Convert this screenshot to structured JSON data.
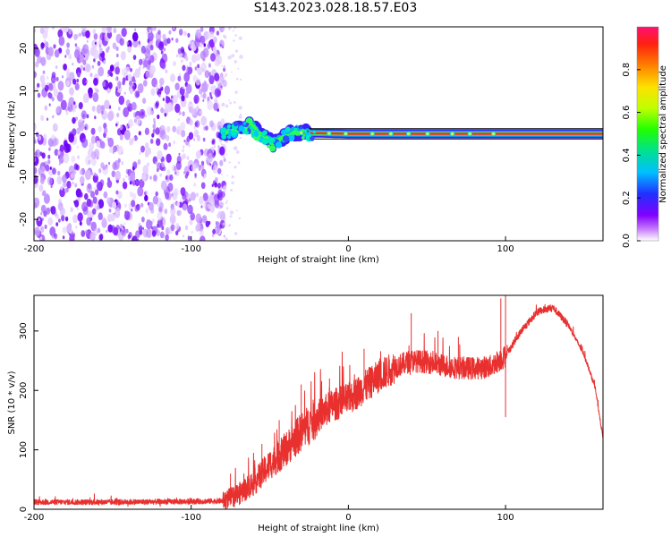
{
  "title": "S143.2023.028.18.57.E03",
  "chart_data": [
    {
      "type": "heatmap",
      "xlabel": "Height of straight line (km)",
      "ylabel": "Frequency (Hz)",
      "xlim": [
        -200,
        162
      ],
      "ylim": [
        -25,
        25
      ],
      "x_ticks": [
        -200,
        -100,
        0,
        100
      ],
      "y_ticks": [
        -20,
        -10,
        0,
        10,
        20
      ],
      "grid": false,
      "description_of_data": "Noise region (x < -80 km) shows scattered low-amplitude purple blobs across all frequencies; from about -80 km onward a narrow signal line near 0 Hz with high normalized amplitude (red core, green/blue halo), wandering near -2 Hz between -75 and -40 km.",
      "signal_line_points": [
        {
          "x": -80,
          "y": 0.0
        },
        {
          "x": -70,
          "y": 1.0
        },
        {
          "x": -62,
          "y": 2.0
        },
        {
          "x": -55,
          "y": -0.5
        },
        {
          "x": -48,
          "y": -2.2
        },
        {
          "x": -42,
          "y": -1.0
        },
        {
          "x": -35,
          "y": 0.3
        },
        {
          "x": -25,
          "y": 0.2
        },
        {
          "x": 0,
          "y": 0.0
        },
        {
          "x": 50,
          "y": 0.0
        },
        {
          "x": 100,
          "y": 0.0
        },
        {
          "x": 162,
          "y": 0.0
        }
      ],
      "colorbar": {
        "label": "Normalized spectral amplitude",
        "range": [
          0.0,
          1.0
        ],
        "ticks": [
          "0.0",
          "0.2",
          "0.4",
          "0.6",
          "0.8"
        ]
      }
    },
    {
      "type": "line",
      "xlabel": "Height of straight line (km)",
      "ylabel": "SNR (10 * v/v)",
      "xlim": [
        -200,
        162
      ],
      "ylim": [
        0,
        360
      ],
      "x_ticks": [
        -200,
        -100,
        0,
        100
      ],
      "y_ticks": [
        0,
        100,
        200,
        300
      ],
      "grid": false,
      "series": [
        {
          "color": "#e8302f",
          "envelope": [
            {
              "x": -200,
              "y": 12
            },
            {
              "x": -150,
              "y": 12
            },
            {
              "x": -100,
              "y": 13
            },
            {
              "x": -80,
              "y": 14
            },
            {
              "x": -70,
              "y": 25
            },
            {
              "x": -60,
              "y": 45
            },
            {
              "x": -50,
              "y": 75
            },
            {
              "x": -40,
              "y": 100
            },
            {
              "x": -30,
              "y": 130
            },
            {
              "x": -20,
              "y": 155
            },
            {
              "x": -10,
              "y": 175
            },
            {
              "x": 0,
              "y": 185
            },
            {
              "x": 10,
              "y": 205
            },
            {
              "x": 20,
              "y": 225
            },
            {
              "x": 30,
              "y": 240
            },
            {
              "x": 40,
              "y": 250
            },
            {
              "x": 50,
              "y": 248
            },
            {
              "x": 60,
              "y": 242
            },
            {
              "x": 70,
              "y": 238
            },
            {
              "x": 80,
              "y": 237
            },
            {
              "x": 90,
              "y": 240
            },
            {
              "x": 100,
              "y": 258
            },
            {
              "x": 110,
              "y": 300
            },
            {
              "x": 120,
              "y": 332
            },
            {
              "x": 130,
              "y": 340
            },
            {
              "x": 140,
              "y": 310
            },
            {
              "x": 150,
              "y": 260
            },
            {
              "x": 157,
              "y": 205
            },
            {
              "x": 162,
              "y": 120
            }
          ],
          "spikes": [
            {
              "x": -75,
              "y": 60
            },
            {
              "x": -55,
              "y": 110
            },
            {
              "x": -44,
              "y": 150
            },
            {
              "x": -30,
              "y": 210
            },
            {
              "x": -12,
              "y": 220
            },
            {
              "x": 10,
              "y": 270
            },
            {
              "x": 40,
              "y": 330
            },
            {
              "x": 57,
              "y": 300
            },
            {
              "x": 70,
              "y": 290
            },
            {
              "x": 97,
              "y": 355
            },
            {
              "x": 100,
              "y": 360
            },
            {
              "x": 100,
              "y": 155
            }
          ]
        }
      ]
    }
  ]
}
